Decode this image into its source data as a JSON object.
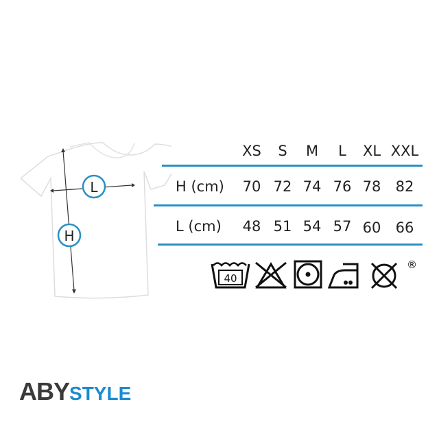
{
  "sizes": [
    "XS",
    "S",
    "M",
    "L",
    "XL",
    "XXL"
  ],
  "rows": [
    {
      "label": "H (cm)",
      "values": [
        "70",
        "72",
        "74",
        "76",
        "78",
        "82"
      ]
    },
    {
      "label": "L (cm)",
      "values": [
        "48",
        "51",
        "54",
        "57",
        "60",
        "66"
      ]
    }
  ],
  "diagram": {
    "length_marker": "L",
    "height_marker": "H"
  },
  "care": {
    "wash_temp": "40",
    "registered": "®"
  },
  "logo": {
    "part1": "ABY",
    "part2": "STYLE"
  },
  "colors": {
    "accent": "#2a8fc7",
    "text": "#222222",
    "logo_dark": "#3a3a3a",
    "logo_blue": "#1a8bd0"
  }
}
